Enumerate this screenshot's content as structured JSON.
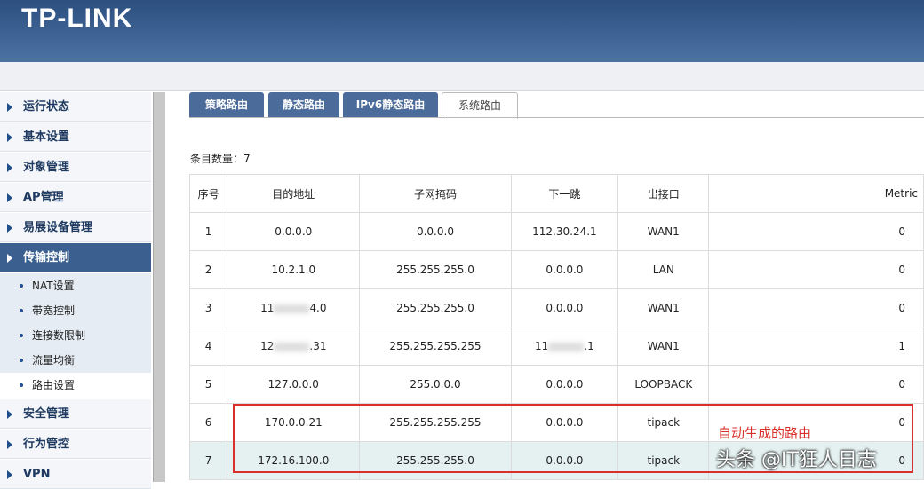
{
  "header": {
    "logo": "TP-LINK"
  },
  "sidebar": {
    "items": [
      "运行状态",
      "基本设置",
      "对象管理",
      "AP管理",
      "易展设备管理",
      "传输控制"
    ],
    "submenu": [
      "NAT设置",
      "带宽控制",
      "连接数限制",
      "流量均衡",
      "路由设置"
    ],
    "items_after": [
      "安全管理",
      "行为管控",
      "VPN"
    ]
  },
  "tabs": [
    "策略路由",
    "静态路由",
    "IPv6静态路由",
    "系统路由"
  ],
  "count": {
    "label": "条目数量：",
    "value": "7"
  },
  "table": {
    "columns": [
      "序号",
      "目的地址",
      "子网掩码",
      "下一跳",
      "出接口",
      "Metric"
    ],
    "rows": [
      [
        "1",
        "0.0.0.0",
        "0.0.0.0",
        "112.30.24.1",
        "WAN1",
        "0"
      ],
      [
        "2",
        "10.2.1.0",
        "255.255.255.0",
        "0.0.0.0",
        "LAN",
        "0"
      ],
      [
        "3",
        {
          "start": "11",
          "end": "4.0"
        },
        "255.255.255.0",
        "0.0.0.0",
        "WAN1",
        "0"
      ],
      [
        "4",
        {
          "start": "12",
          "end": ".31"
        },
        "255.255.255.255",
        {
          "start": "11",
          "end": ".1"
        },
        "WAN1",
        "1"
      ],
      [
        "5",
        "127.0.0.0",
        "255.0.0.0",
        "0.0.0.0",
        "LOOPBACK",
        "0"
      ],
      [
        "6",
        "170.0.0.21",
        "255.255.255.255",
        "0.0.0.0",
        "tipack",
        "0"
      ],
      [
        "7",
        "172.16.100.0",
        "255.255.255.0",
        "0.0.0.0",
        "tipack",
        "0"
      ]
    ]
  },
  "annotation": "自动生成的路由",
  "watermark": "头条 @IT狂人日志"
}
